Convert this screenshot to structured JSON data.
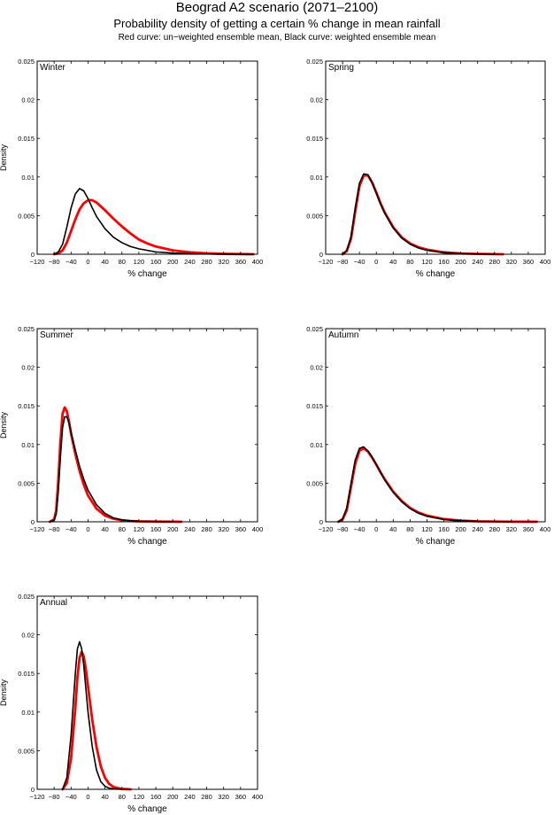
{
  "header": {
    "title": "Beograd A2 scenario (2071–2100)",
    "subtitle": "Probability density of getting a certain % change in mean rainfall",
    "legend_note": "Red curve: un−weighted ensemble mean, Black curve: weighted ensemble mean"
  },
  "colors": {
    "unweighted": "#ff0000",
    "weighted": "#000000"
  },
  "chart_data": [
    {
      "type": "line",
      "panel": "Winter",
      "xlabel": "% change",
      "ylabel": "Density",
      "xlim": [
        -120,
        400
      ],
      "ylim": [
        0,
        0.025
      ],
      "xticks": [
        -120,
        -80,
        -40,
        0,
        40,
        80,
        120,
        160,
        200,
        240,
        280,
        320,
        360,
        400
      ],
      "xtick_labels": [
        "−120",
        "−80",
        "−40",
        "0",
        "40",
        "80",
        "120",
        "160",
        "200",
        "240",
        "280",
        "320",
        "360",
        "400"
      ],
      "yticks": [
        0,
        0.005,
        0.01,
        0.015,
        0.02,
        0.025
      ],
      "ytick_labels": [
        "0",
        "0.005",
        "0.01",
        "0.015",
        "0.02",
        "0.025"
      ],
      "series": [
        {
          "name": "Red curve: un-weighted ensemble mean",
          "x": [
            -80,
            -70,
            -60,
            -50,
            -40,
            -30,
            -20,
            -10,
            0,
            10,
            20,
            40,
            60,
            80,
            100,
            120,
            140,
            160,
            200,
            240,
            280,
            320,
            360,
            390
          ],
          "y": [
            0,
            0.0001,
            0.0005,
            0.0015,
            0.003,
            0.0045,
            0.0058,
            0.0066,
            0.007,
            0.007,
            0.0067,
            0.0057,
            0.0046,
            0.0036,
            0.0027,
            0.0019,
            0.0014,
            0.001,
            0.0005,
            0.00025,
            0.00012,
            5e-05,
            2e-05,
            0
          ]
        },
        {
          "name": "Black curve: weighted ensemble mean",
          "x": [
            -80,
            -70,
            -60,
            -50,
            -40,
            -30,
            -20,
            -10,
            0,
            10,
            20,
            40,
            60,
            80,
            100,
            120,
            140,
            160,
            200,
            240,
            280,
            320,
            360,
            390
          ],
          "y": [
            0,
            0.0003,
            0.0013,
            0.0035,
            0.006,
            0.0078,
            0.0085,
            0.0082,
            0.0072,
            0.006,
            0.0049,
            0.0033,
            0.0022,
            0.0015,
            0.001,
            0.0007,
            0.0005,
            0.0003,
            0.00015,
            7e-05,
            3e-05,
            1e-05,
            0,
            0
          ]
        }
      ]
    },
    {
      "type": "line",
      "panel": "Spring",
      "xlabel": "% change",
      "ylabel": "",
      "xlim": [
        -120,
        400
      ],
      "ylim": [
        0,
        0.025
      ],
      "xticks": [
        -120,
        -80,
        -40,
        0,
        40,
        80,
        120,
        160,
        200,
        240,
        280,
        320,
        360,
        400
      ],
      "xtick_labels": [
        "−120",
        "−80",
        "−40",
        "0",
        "40",
        "80",
        "120",
        "160",
        "200",
        "240",
        "280",
        "320",
        "360",
        "400"
      ],
      "yticks": [
        0,
        0.005,
        0.01,
        0.015,
        0.02,
        0.025
      ],
      "ytick_labels": [
        "0",
        "0.005",
        "0.01",
        "0.015",
        "0.02",
        "0.025"
      ],
      "series": [
        {
          "name": "Red curve: un-weighted ensemble mean",
          "x": [
            -80,
            -70,
            -60,
            -50,
            -40,
            -30,
            -20,
            -10,
            0,
            10,
            20,
            40,
            60,
            80,
            100,
            120,
            160,
            200,
            240,
            280,
            300
          ],
          "y": [
            0,
            0.0004,
            0.002,
            0.0055,
            0.0088,
            0.0102,
            0.0102,
            0.0093,
            0.008,
            0.0066,
            0.0054,
            0.0035,
            0.0022,
            0.0014,
            0.0009,
            0.0006,
            0.00025,
            0.0001,
            4e-05,
            1e-05,
            0
          ]
        },
        {
          "name": "Black curve: weighted ensemble mean",
          "x": [
            -80,
            -70,
            -60,
            -50,
            -40,
            -30,
            -20,
            -10,
            0,
            10,
            20,
            40,
            60,
            80,
            100,
            120,
            160,
            200,
            240,
            280
          ],
          "y": [
            0,
            0.0005,
            0.0023,
            0.006,
            0.0092,
            0.0104,
            0.0103,
            0.0093,
            0.0079,
            0.0065,
            0.0053,
            0.0034,
            0.0021,
            0.0013,
            0.0008,
            0.0005,
            0.0002,
            8e-05,
            3e-05,
            0
          ]
        }
      ]
    },
    {
      "type": "line",
      "panel": "Summer",
      "xlabel": "% change",
      "ylabel": "Density",
      "xlim": [
        -120,
        400
      ],
      "ylim": [
        0,
        0.025
      ],
      "xticks": [
        -120,
        -80,
        -40,
        0,
        40,
        80,
        120,
        160,
        200,
        240,
        280,
        320,
        360,
        400
      ],
      "xtick_labels": [
        "−120",
        "−80",
        "−40",
        "0",
        "40",
        "80",
        "120",
        "160",
        "200",
        "240",
        "280",
        "320",
        "360",
        "400"
      ],
      "yticks": [
        0,
        0.005,
        0.01,
        0.015,
        0.02,
        0.025
      ],
      "ytick_labels": [
        "0",
        "0.005",
        "0.01",
        "0.015",
        "0.02",
        "0.025"
      ],
      "series": [
        {
          "name": "Red curve: un-weighted ensemble mean",
          "x": [
            -90,
            -80,
            -75,
            -70,
            -65,
            -60,
            -55,
            -50,
            -45,
            -40,
            -30,
            -20,
            -10,
            0,
            20,
            40,
            60,
            80,
            100,
            120,
            160,
            200,
            220
          ],
          "y": [
            0,
            0.0003,
            0.0015,
            0.0055,
            0.0105,
            0.014,
            0.0148,
            0.0143,
            0.013,
            0.0114,
            0.0088,
            0.0066,
            0.0048,
            0.0034,
            0.0017,
            0.0008,
            0.0004,
            0.0002,
            0.0001,
            5e-05,
            2e-05,
            1e-05,
            0
          ]
        },
        {
          "name": "Black curve: weighted ensemble mean",
          "x": [
            -90,
            -80,
            -75,
            -70,
            -65,
            -60,
            -55,
            -50,
            -45,
            -40,
            -30,
            -20,
            -10,
            0,
            20,
            40,
            60,
            80,
            100,
            120,
            160,
            200
          ],
          "y": [
            0,
            0.0002,
            0.001,
            0.004,
            0.0085,
            0.0122,
            0.0136,
            0.0136,
            0.0128,
            0.0116,
            0.0093,
            0.0072,
            0.0055,
            0.0041,
            0.0022,
            0.0011,
            0.0005,
            0.00025,
            0.00012,
            6e-05,
            2e-05,
            0
          ]
        }
      ]
    },
    {
      "type": "line",
      "panel": "Autumn",
      "xlabel": "% change",
      "ylabel": "",
      "xlim": [
        -120,
        400
      ],
      "ylim": [
        0,
        0.025
      ],
      "xticks": [
        -120,
        -80,
        -40,
        0,
        40,
        80,
        120,
        160,
        200,
        240,
        280,
        320,
        360,
        400
      ],
      "xtick_labels": [
        "−120",
        "−80",
        "−40",
        "0",
        "40",
        "80",
        "120",
        "160",
        "200",
        "240",
        "280",
        "320",
        "360",
        "400"
      ],
      "yticks": [
        0,
        0.005,
        0.01,
        0.015,
        0.02,
        0.025
      ],
      "ytick_labels": [
        "0",
        "0.005",
        "0.01",
        "0.015",
        "0.02",
        "0.025"
      ],
      "series": [
        {
          "name": "Red curve: un-weighted ensemble mean",
          "x": [
            -90,
            -80,
            -70,
            -60,
            -50,
            -40,
            -30,
            -20,
            -10,
            0,
            10,
            20,
            40,
            60,
            80,
            100,
            120,
            160,
            200,
            240,
            280,
            320,
            360,
            380
          ],
          "y": [
            0,
            0.0003,
            0.0015,
            0.0045,
            0.0075,
            0.0092,
            0.0095,
            0.0091,
            0.0083,
            0.0074,
            0.0064,
            0.0055,
            0.0039,
            0.0027,
            0.0018,
            0.0012,
            0.0008,
            0.00035,
            0.00015,
            6e-05,
            3e-05,
            1e-05,
            5e-06,
            0
          ]
        },
        {
          "name": "Black curve: weighted ensemble mean",
          "x": [
            -90,
            -80,
            -70,
            -60,
            -50,
            -40,
            -30,
            -20,
            -10,
            0,
            10,
            20,
            40,
            60,
            80,
            100,
            120,
            160,
            200,
            240,
            280,
            320
          ],
          "y": [
            0,
            0.0004,
            0.0018,
            0.005,
            0.008,
            0.0095,
            0.0097,
            0.0092,
            0.0084,
            0.0074,
            0.0064,
            0.0054,
            0.0038,
            0.0026,
            0.0017,
            0.0011,
            0.0007,
            0.0003,
            0.00012,
            5e-05,
            2e-05,
            0
          ]
        }
      ]
    },
    {
      "type": "line",
      "panel": "Annual",
      "xlabel": "% change",
      "ylabel": "Density",
      "xlim": [
        -120,
        400
      ],
      "ylim": [
        0,
        0.025
      ],
      "xticks": [
        -120,
        -80,
        -40,
        0,
        40,
        80,
        120,
        160,
        200,
        240,
        280,
        320,
        360,
        400
      ],
      "xtick_labels": [
        "−120",
        "−80",
        "−40",
        "0",
        "40",
        "80",
        "120",
        "160",
        "200",
        "240",
        "280",
        "320",
        "360",
        "400"
      ],
      "yticks": [
        0,
        0.005,
        0.01,
        0.015,
        0.02,
        0.025
      ],
      "ytick_labels": [
        "0",
        "0.005",
        "0.01",
        "0.015",
        "0.02",
        "0.025"
      ],
      "series": [
        {
          "name": "Red curve: un-weighted ensemble mean",
          "x": [
            -60,
            -50,
            -40,
            -30,
            -25,
            -20,
            -15,
            -10,
            -5,
            0,
            10,
            20,
            30,
            40,
            50,
            60,
            80,
            100
          ],
          "y": [
            0,
            0.0008,
            0.004,
            0.0105,
            0.0145,
            0.017,
            0.0178,
            0.0172,
            0.0155,
            0.0133,
            0.009,
            0.0055,
            0.003,
            0.0015,
            0.0007,
            0.0003,
            5e-05,
            0
          ]
        },
        {
          "name": "Black curve: weighted ensemble mean",
          "x": [
            -60,
            -50,
            -40,
            -30,
            -25,
            -20,
            -15,
            -10,
            -5,
            0,
            10,
            20,
            30,
            40,
            50,
            60,
            80
          ],
          "y": [
            0,
            0.0015,
            0.007,
            0.015,
            0.0182,
            0.0191,
            0.0182,
            0.016,
            0.013,
            0.01,
            0.0055,
            0.0025,
            0.001,
            0.0004,
            0.00015,
            5e-05,
            0
          ]
        }
      ]
    }
  ]
}
